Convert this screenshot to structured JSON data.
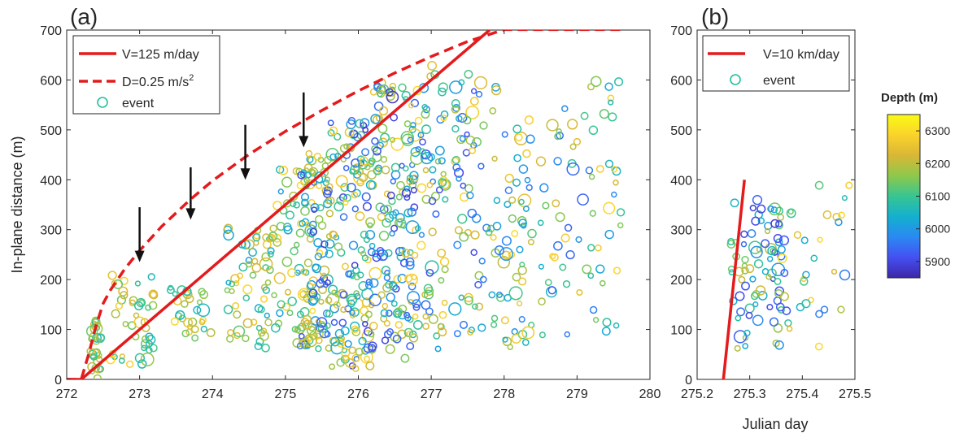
{
  "figure": {
    "xlabel": "Julian day",
    "ylabel": "In-plane distance (m)",
    "colorbar": {
      "label": "Depth (m)",
      "ticks": [
        5900,
        6000,
        6100,
        6200,
        6300
      ],
      "range": [
        5850,
        6350
      ],
      "colormap": [
        "#3e26a8",
        "#4450f2",
        "#2b89f2",
        "#13b0cf",
        "#38c592",
        "#8ec84b",
        "#d9b736",
        "#fbd32b",
        "#f9fb15"
      ]
    }
  },
  "chart_data": [
    {
      "type": "scatter",
      "panel_label": "(a)",
      "xlim": [
        272,
        280
      ],
      "ylim": [
        0,
        700
      ],
      "xticks": [
        272,
        273,
        274,
        275,
        276,
        277,
        278,
        279,
        280
      ],
      "yticks": [
        0,
        100,
        200,
        300,
        400,
        500,
        600,
        700
      ],
      "grid": false,
      "legend_position": "top-left",
      "legend": [
        {
          "label": "V=125 m/day",
          "style": "solid",
          "color": "#e41a1c"
        },
        {
          "label": "D=0.25 m/s",
          "superscript": "2",
          "style": "dashed",
          "color": "#e41a1c"
        },
        {
          "label": "event",
          "style": "marker",
          "color": "#1fbf9a"
        }
      ],
      "lines": [
        {
          "name": "V=125 m/day",
          "style": "solid",
          "color": "#e41a1c",
          "x": [
            272.0,
            272.2,
            277.8
          ],
          "y": [
            0,
            0,
            700
          ]
        },
        {
          "name": "D=0.25 m/s2",
          "style": "dashed",
          "color": "#e41a1c",
          "x": [
            272.0,
            272.2,
            272.3,
            272.4,
            272.5,
            272.6,
            272.8,
            273.0,
            273.3,
            273.7,
            274.0,
            274.5,
            275.0,
            275.5,
            276.0,
            276.5,
            277.0,
            277.5,
            278.0,
            278.5,
            279.0,
            279.6
          ],
          "y": [
            0,
            0,
            50,
            106,
            152,
            179,
            222,
            258,
            306,
            361,
            398,
            451,
            497,
            539,
            578,
            614,
            647,
            677,
            701,
            701,
            701,
            701
          ]
        }
      ],
      "arrows_x": [
        273.0,
        273.7,
        274.45,
        275.25
      ],
      "arrows_y_top": [
        345,
        425,
        510,
        575
      ],
      "arrows_y_tip": [
        235,
        320,
        400,
        465
      ],
      "event_count_note": "events in (a): ~1000 (many overlapping); representative clusters listed",
      "clusters": [
        {
          "x_range": [
            272.3,
            272.5
          ],
          "y_range": [
            0,
            120
          ],
          "depth_range": [
            6050,
            6250
          ],
          "n": 30
        },
        {
          "x_range": [
            272.6,
            273.2
          ],
          "y_range": [
            20,
            210
          ],
          "depth_range": [
            6050,
            6300
          ],
          "n": 45
        },
        {
          "x_range": [
            273.4,
            274.0
          ],
          "y_range": [
            80,
            190
          ],
          "depth_range": [
            6050,
            6300
          ],
          "n": 30
        },
        {
          "x_range": [
            274.2,
            274.8
          ],
          "y_range": [
            60,
            310
          ],
          "depth_range": [
            6000,
            6300
          ],
          "n": 60
        },
        {
          "x_range": [
            274.8,
            275.4
          ],
          "y_range": [
            70,
            430
          ],
          "depth_range": [
            6000,
            6300
          ],
          "n": 60
        },
        {
          "x_range": [
            275.2,
            275.6
          ],
          "y_range": [
            60,
            460
          ],
          "depth_range": [
            5880,
            6300
          ],
          "n": 110
        },
        {
          "x_range": [
            275.6,
            276.2
          ],
          "y_range": [
            20,
            520
          ],
          "depth_range": [
            5880,
            6300
          ],
          "n": 160
        },
        {
          "x_range": [
            276.2,
            276.8
          ],
          "y_range": [
            40,
            600
          ],
          "depth_range": [
            5880,
            6300
          ],
          "n": 160
        },
        {
          "x_range": [
            276.8,
            277.2
          ],
          "y_range": [
            60,
            630
          ],
          "depth_range": [
            5900,
            6300
          ],
          "n": 70
        },
        {
          "x_range": [
            277.3,
            277.9
          ],
          "y_range": [
            90,
            620
          ],
          "depth_range": [
            5900,
            6300
          ],
          "n": 70
        },
        {
          "x_range": [
            277.9,
            278.4
          ],
          "y_range": [
            60,
            520
          ],
          "depth_range": [
            5950,
            6300
          ],
          "n": 55
        },
        {
          "x_range": [
            278.5,
            279.1
          ],
          "y_range": [
            80,
            580
          ],
          "depth_range": [
            5900,
            6300
          ],
          "n": 35
        },
        {
          "x_range": [
            279.1,
            279.6
          ],
          "y_range": [
            60,
            620
          ],
          "depth_range": [
            5950,
            6300
          ],
          "n": 35
        }
      ]
    },
    {
      "type": "scatter",
      "panel_label": "(b)",
      "xlim": [
        275.2,
        275.5
      ],
      "ylim": [
        0,
        700
      ],
      "xticks": [
        275.2,
        275.3,
        275.4,
        275.5
      ],
      "yticks": [
        0,
        100,
        200,
        300,
        400,
        500,
        600,
        700
      ],
      "grid": false,
      "legend_position": "top-right",
      "legend": [
        {
          "label": "V=10 km/day",
          "style": "solid",
          "color": "#e41a1c"
        },
        {
          "label": "event",
          "style": "marker",
          "color": "#1fbf9a"
        }
      ],
      "lines": [
        {
          "name": "V=10 km/day",
          "style": "solid",
          "color": "#e41a1c",
          "x": [
            275.25,
            275.29
          ],
          "y": [
            0,
            400
          ]
        }
      ],
      "clusters": [
        {
          "x_range": [
            275.26,
            275.36
          ],
          "y_range": [
            60,
            360
          ],
          "depth_range": [
            5880,
            6250
          ],
          "n": 80
        },
        {
          "x_range": [
            275.36,
            275.42
          ],
          "y_range": [
            100,
            370
          ],
          "depth_range": [
            5900,
            6300
          ],
          "n": 18
        },
        {
          "x_range": [
            275.42,
            275.5
          ],
          "y_range": [
            40,
            430
          ],
          "depth_range": [
            5950,
            6300
          ],
          "n": 15
        }
      ]
    }
  ]
}
